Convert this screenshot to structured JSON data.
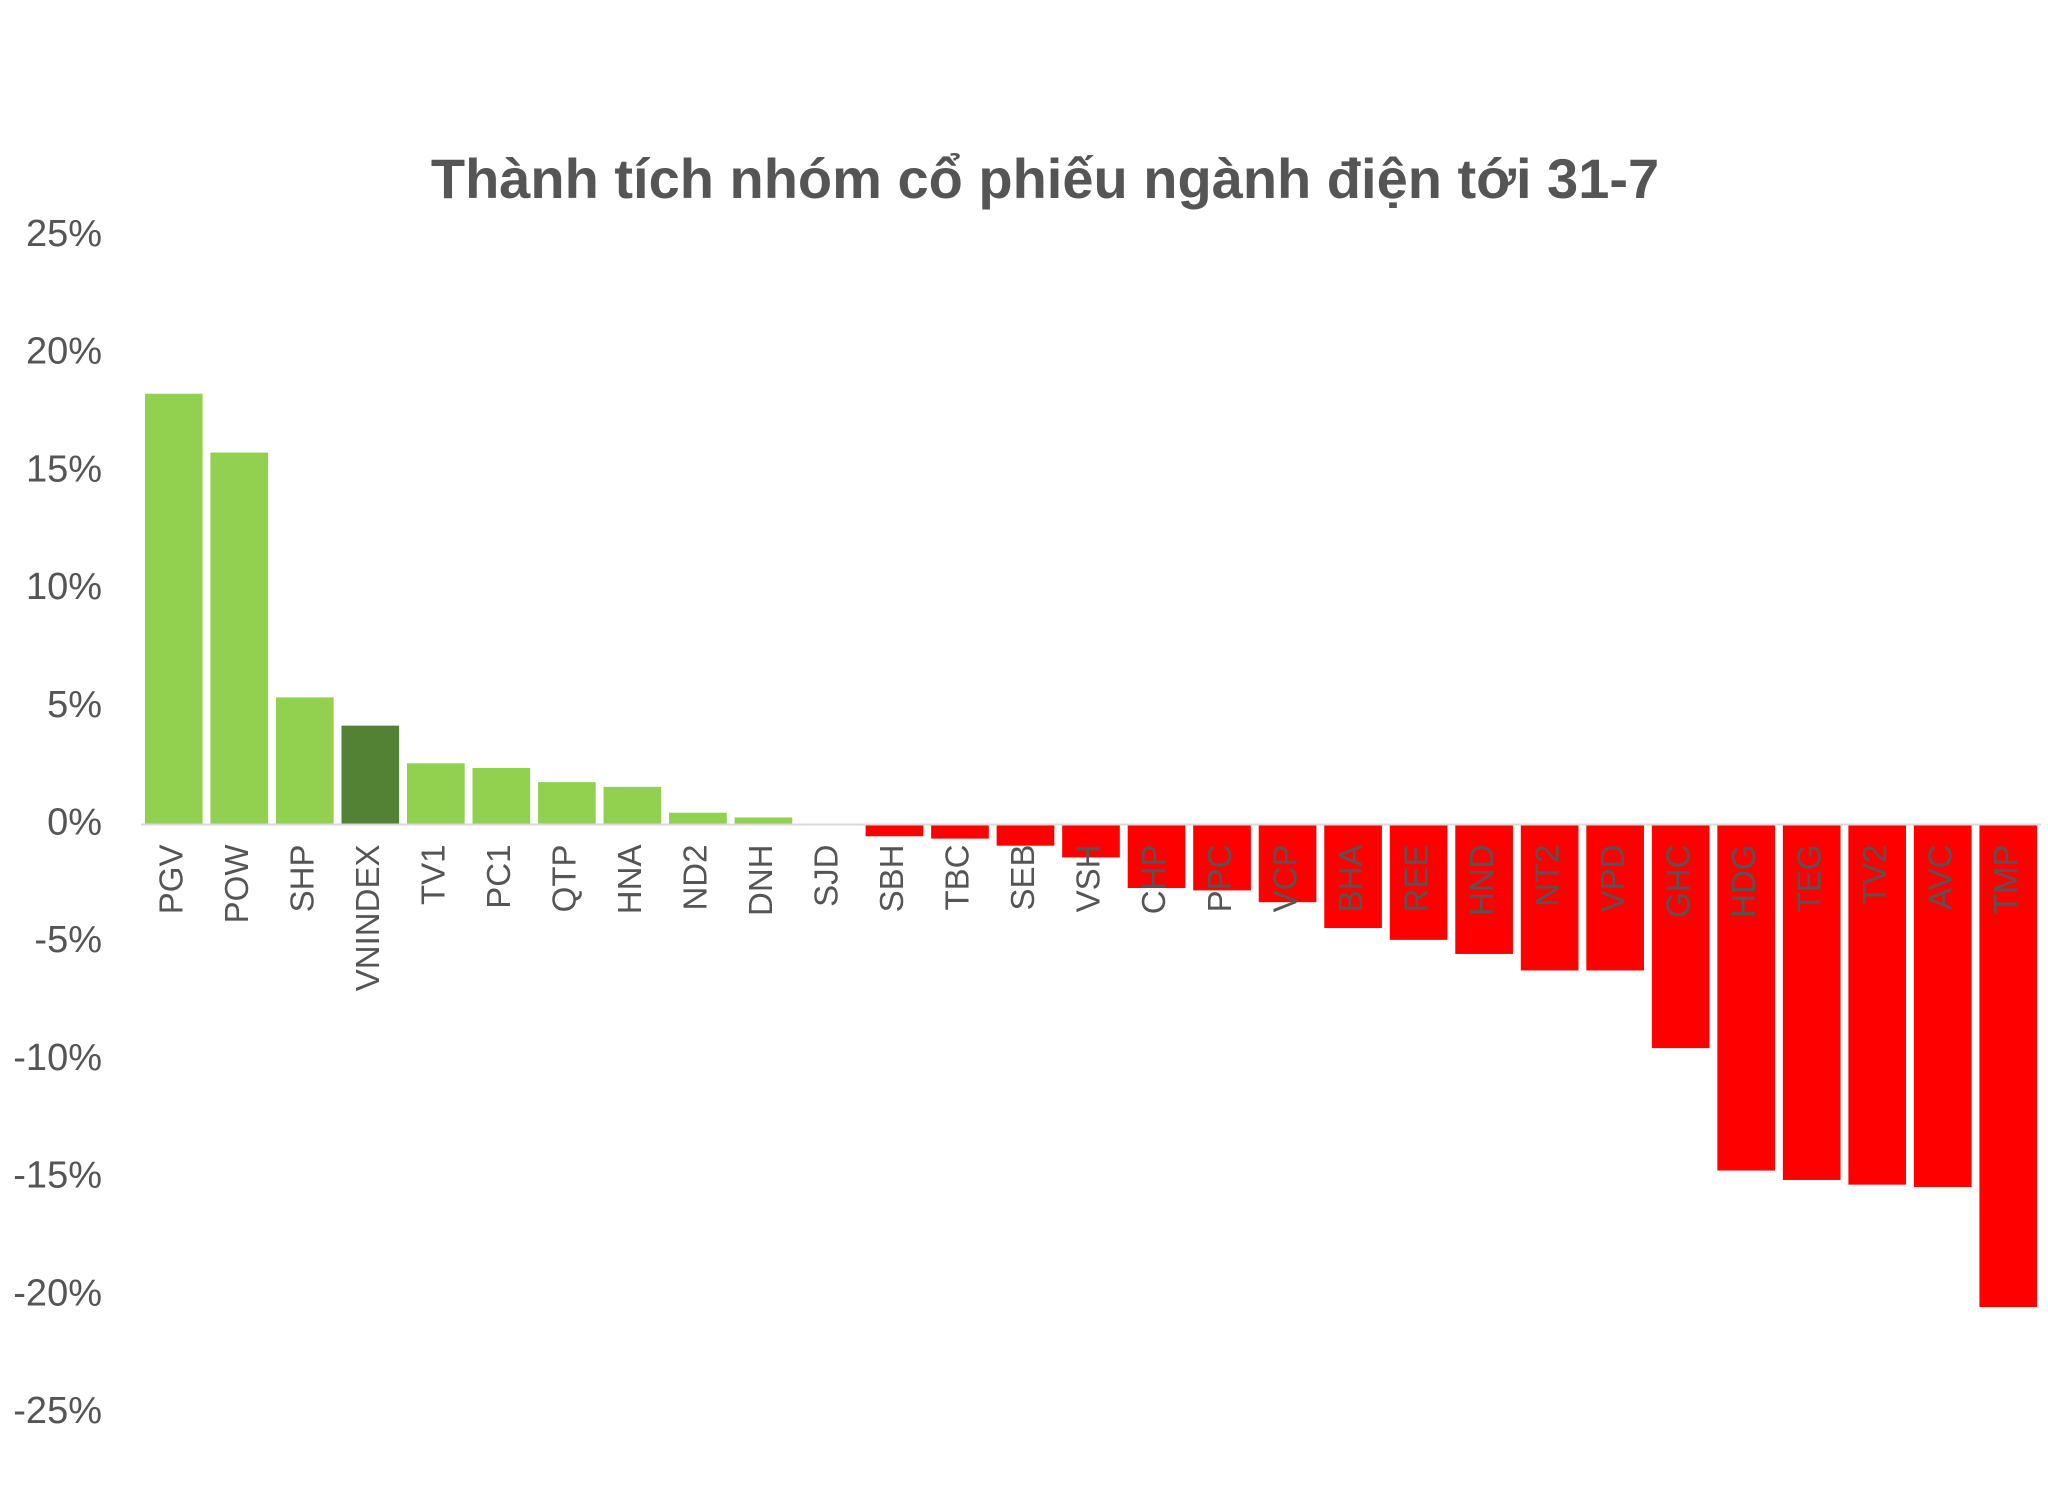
{
  "chart_data": {
    "type": "bar",
    "title": "Thành tích nhóm cổ phiếu ngành điện tới 31-7",
    "categories": [
      "PGV",
      "POW",
      "SHP",
      "VNINDEX",
      "TV1",
      "PC1",
      "QTP",
      "HNA",
      "ND2",
      "DNH",
      "SJD",
      "SBH",
      "TBC",
      "SEB",
      "VSH",
      "CHP",
      "PPC",
      "VCP",
      "BHA",
      "REE",
      "HND",
      "NT2",
      "VPD",
      "GHC",
      "HDG",
      "TEG",
      "TV2",
      "AVC",
      "TMP"
    ],
    "values": [
      18.3,
      15.8,
      5.4,
      4.2,
      2.6,
      2.4,
      1.8,
      1.6,
      0.5,
      0.3,
      0,
      -0.5,
      -0.6,
      -0.9,
      -1.4,
      -2.7,
      -2.8,
      -3.3,
      -4.4,
      -4.9,
      -5.5,
      -6.2,
      -6.2,
      -9.5,
      -14.7,
      -15.1,
      -15.3,
      -15.4,
      -20.5
    ],
    "colors": [
      "#92d050",
      "#92d050",
      "#92d050",
      "#548235",
      "#92d050",
      "#92d050",
      "#92d050",
      "#92d050",
      "#92d050",
      "#92d050",
      "#92d050",
      "#ff0000",
      "#ff0000",
      "#ff0000",
      "#ff0000",
      "#ff0000",
      "#ff0000",
      "#ff0000",
      "#ff0000",
      "#ff0000",
      "#ff0000",
      "#ff0000",
      "#ff0000",
      "#ff0000",
      "#ff0000",
      "#ff0000",
      "#ff0000",
      "#ff0000",
      "#ff0000"
    ],
    "ylim": [
      -25,
      25
    ],
    "yticks": [
      {
        "value": -25,
        "label": "-25%"
      },
      {
        "value": -20,
        "label": "-20%"
      },
      {
        "value": -15,
        "label": "-15%"
      },
      {
        "value": -10,
        "label": "-10%"
      },
      {
        "value": -5,
        "label": "-5%"
      },
      {
        "value": 0,
        "label": "0%"
      },
      {
        "value": 5,
        "label": "5%"
      },
      {
        "value": 10,
        "label": "10%"
      },
      {
        "value": 15,
        "label": "15%"
      },
      {
        "value": 20,
        "label": "20%"
      },
      {
        "value": 25,
        "label": "25%"
      }
    ]
  }
}
